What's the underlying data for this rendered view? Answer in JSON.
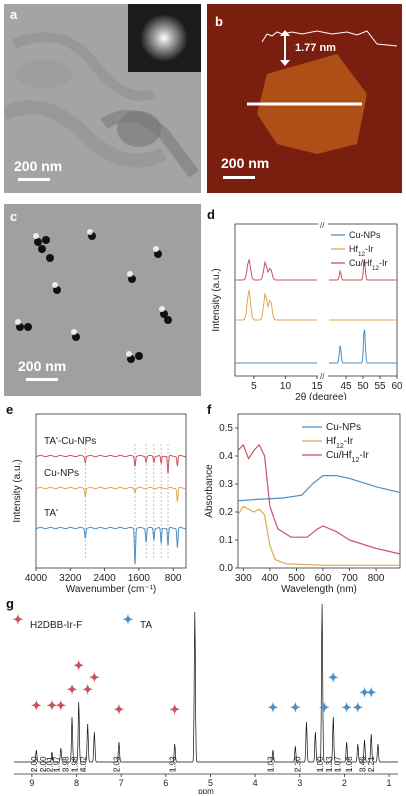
{
  "panels": {
    "a": {
      "label": "a",
      "scale": "200 nm"
    },
    "b": {
      "label": "b",
      "scale": "200 nm",
      "height_label": "1.77 nm"
    },
    "c": {
      "label": "c",
      "scale": "200 nm"
    },
    "d": {
      "label": "d"
    },
    "e": {
      "label": "e"
    },
    "f": {
      "label": "f"
    },
    "g": {
      "label": "g"
    }
  },
  "colors": {
    "blue": "#4a90c8",
    "orange": "#e0a84e",
    "red": "#c9525f",
    "afm_bg": "#7a1e10",
    "afm_flake": "#b5541a"
  },
  "chart_data": [
    {
      "id": "d",
      "type": "line",
      "xlabel": "2θ (degree)",
      "ylabel": "Intensity (a.u.)",
      "xticks": [
        "5",
        "10",
        "15",
        "45",
        "50",
        "55",
        "60"
      ],
      "axis_break": true,
      "xlim_left": [
        2,
        15
      ],
      "xlim_right": [
        40,
        60
      ],
      "series": [
        {
          "name": "Cu-NPs",
          "color": "#4a90c8",
          "peaks": [
            [
              43.3,
              0.5
            ],
            [
              50.4,
              1.0
            ]
          ]
        },
        {
          "name": "Hf12-Ir",
          "color": "#e0a84e",
          "peaks": [
            [
              4.2,
              0.9
            ],
            [
              6.8,
              0.8
            ],
            [
              7.6,
              0.6
            ]
          ]
        },
        {
          "name": "Cu/Hf12-Ir",
          "color": "#c9525f",
          "peaks": [
            [
              4.2,
              0.7
            ],
            [
              6.8,
              0.6
            ],
            [
              7.6,
              0.4
            ],
            [
              43.3,
              0.3
            ],
            [
              50.4,
              0.7
            ]
          ]
        }
      ],
      "legend": [
        "Cu-NPs",
        "Hf12-Ir",
        "Cu/Hf12-Ir"
      ]
    },
    {
      "id": "e",
      "type": "line",
      "xlabel": "Wavenumber (cm⁻¹)",
      "ylabel": "Intensity (a.u.)",
      "xticks": [
        "4000",
        "3200",
        "2400",
        "1600",
        "800"
      ],
      "xlim": [
        4000,
        500
      ],
      "series": [
        {
          "name": "TA'-Cu-NPs",
          "color": "#c9525f"
        },
        {
          "name": "Cu-NPs",
          "color": "#e0a84e"
        },
        {
          "name": "TA'",
          "color": "#4a90c8"
        }
      ],
      "labels": [
        "TA'-Cu-NPs",
        "Cu-NPs",
        "TA'"
      ],
      "dashed_lines": [
        2850,
        1690,
        1430,
        1250,
        1080,
        920
      ]
    },
    {
      "id": "f",
      "type": "line",
      "xlabel": "Wavelength (nm)",
      "ylabel": "Absorbance",
      "xticks": [
        "300",
        "400",
        "500",
        "600",
        "700",
        "800"
      ],
      "yticks": [
        "0.0",
        "0.1",
        "0.2",
        "0.3",
        "0.4",
        "0.5"
      ],
      "xlim": [
        280,
        890
      ],
      "ylim": [
        0,
        0.55
      ],
      "series": [
        {
          "name": "Cu-NPs",
          "color": "#4a90c8",
          "points": [
            [
              280,
              0.24
            ],
            [
              350,
              0.245
            ],
            [
              450,
              0.25
            ],
            [
              520,
              0.26
            ],
            [
              560,
              0.3
            ],
            [
              600,
              0.33
            ],
            [
              650,
              0.33
            ],
            [
              700,
              0.32
            ],
            [
              800,
              0.29
            ],
            [
              890,
              0.27
            ]
          ]
        },
        {
          "name": "Hf12-Ir",
          "color": "#e0a84e",
          "points": [
            [
              280,
              0.19
            ],
            [
              300,
              0.22
            ],
            [
              320,
              0.21
            ],
            [
              340,
              0.2
            ],
            [
              360,
              0.21
            ],
            [
              380,
              0.19
            ],
            [
              400,
              0.08
            ],
            [
              420,
              0.03
            ],
            [
              460,
              0.015
            ],
            [
              600,
              0.01
            ],
            [
              890,
              0.01
            ]
          ]
        },
        {
          "name": "Cu/Hf12-Ir",
          "color": "#c9525f",
          "points": [
            [
              280,
              0.42
            ],
            [
              300,
              0.44
            ],
            [
              320,
              0.39
            ],
            [
              340,
              0.42
            ],
            [
              360,
              0.44
            ],
            [
              380,
              0.4
            ],
            [
              400,
              0.22
            ],
            [
              430,
              0.14
            ],
            [
              480,
              0.11
            ],
            [
              540,
              0.11
            ],
            [
              580,
              0.14
            ],
            [
              600,
              0.15
            ],
            [
              650,
              0.13
            ],
            [
              700,
              0.1
            ],
            [
              800,
              0.07
            ],
            [
              890,
              0.05
            ]
          ]
        }
      ],
      "legend": [
        "Cu-NPs",
        "Hf12-Ir",
        "Cu/Hf12-Ir"
      ]
    },
    {
      "id": "g",
      "type": "line",
      "xlabel": "ppm",
      "xticks": [
        "9",
        "8",
        "7",
        "6",
        "5",
        "4",
        "3",
        "2",
        "1"
      ],
      "xlim": [
        9.4,
        0.8
      ],
      "legend": [
        "H2DBB-Ir-F",
        "TA"
      ],
      "integrals": [
        "2.00",
        "2.00",
        "2.01",
        "1.97",
        "3.98",
        "1.98",
        "4.02",
        "2.03",
        "1.93",
        "1.03",
        "2.30",
        "1.00",
        "1.33",
        "1.07",
        "1.08",
        "3.46",
        "2.21"
      ],
      "red_star_ppm": [
        8.9,
        8.55,
        8.35,
        8.1,
        7.95,
        7.75,
        7.6,
        7.05,
        5.8
      ],
      "blue_star_ppm": [
        3.6,
        3.1,
        2.45,
        2.25,
        1.95,
        1.7,
        1.55,
        1.4
      ]
    }
  ]
}
